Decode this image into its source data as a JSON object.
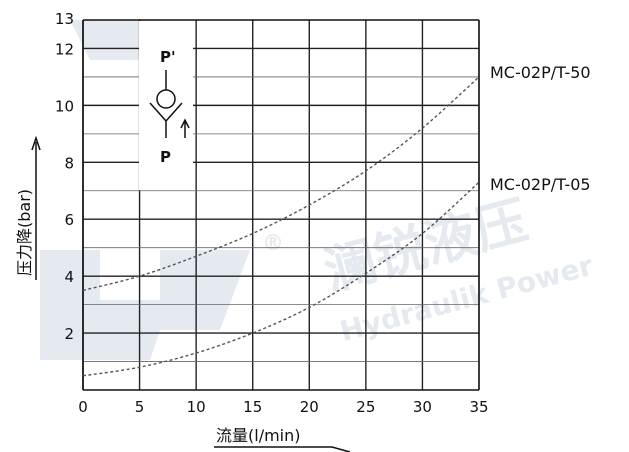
{
  "chart_data": {
    "type": "line",
    "xlabel": "流量(l/min)",
    "ylabel": "压力降(bar)",
    "xlim": [
      0,
      35
    ],
    "ylim": [
      0,
      13
    ],
    "x_ticks": [
      "0",
      "5",
      "10",
      "15",
      "20",
      "25",
      "30",
      "35"
    ],
    "y_ticks": [
      "2",
      "4",
      "6",
      "8",
      "10",
      "12",
      "13"
    ],
    "grid": true,
    "series": [
      {
        "name": "MC-02P/T-50",
        "style": "dashed",
        "color": "#555555",
        "points": [
          [
            0,
            3.5
          ],
          [
            5,
            4.0
          ],
          [
            10,
            4.7
          ],
          [
            15,
            5.5
          ],
          [
            20,
            6.5
          ],
          [
            25,
            7.7
          ],
          [
            30,
            9.2
          ],
          [
            35,
            11.0
          ]
        ]
      },
      {
        "name": "MC-02P/T-05",
        "style": "dashed",
        "color": "#555555",
        "points": [
          [
            0,
            0.5
          ],
          [
            5,
            0.8
          ],
          [
            10,
            1.3
          ],
          [
            15,
            2.0
          ],
          [
            20,
            2.9
          ],
          [
            25,
            4.1
          ],
          [
            30,
            5.5
          ],
          [
            35,
            7.3
          ]
        ]
      }
    ],
    "symbol": {
      "top_label": "P'",
      "bottom_label": "P"
    },
    "watermark": {
      "brand_text": "澜锐液压",
      "sub_text": "Hydraulik Power",
      "mark": "®"
    }
  }
}
